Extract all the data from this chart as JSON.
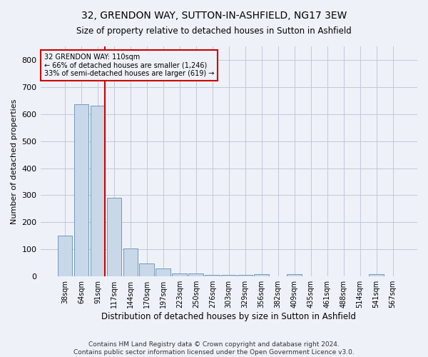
{
  "title1": "32, GRENDON WAY, SUTTON-IN-ASHFIELD, NG17 3EW",
  "title2": "Size of property relative to detached houses in Sutton in Ashfield",
  "xlabel": "Distribution of detached houses by size in Sutton in Ashfield",
  "ylabel": "Number of detached properties",
  "footer1": "Contains HM Land Registry data © Crown copyright and database right 2024.",
  "footer2": "Contains public sector information licensed under the Open Government Licence v3.0.",
  "categories": [
    "38sqm",
    "64sqm",
    "91sqm",
    "117sqm",
    "144sqm",
    "170sqm",
    "197sqm",
    "223sqm",
    "250sqm",
    "276sqm",
    "303sqm",
    "329sqm",
    "356sqm",
    "382sqm",
    "409sqm",
    "435sqm",
    "461sqm",
    "488sqm",
    "514sqm",
    "541sqm",
    "567sqm"
  ],
  "values": [
    150,
    635,
    630,
    290,
    103,
    47,
    30,
    12,
    10,
    6,
    5,
    5,
    8,
    0,
    8,
    0,
    0,
    0,
    0,
    8,
    0
  ],
  "bar_color": "#c8d8e8",
  "bar_edge_color": "#7099bb",
  "grid_color": "#c0c8d8",
  "bg_color": "#eef2f8",
  "annotation_box_color": "#cc0000",
  "property_line_color": "#cc0000",
  "property_label": "32 GRENDON WAY: 110sqm",
  "annotation_line1": "← 66% of detached houses are smaller (1,246)",
  "annotation_line2": "33% of semi-detached houses are larger (619) →",
  "property_bar_index": 2,
  "ylim": [
    0,
    850
  ],
  "yticks": [
    0,
    100,
    200,
    300,
    400,
    500,
    600,
    700,
    800
  ]
}
